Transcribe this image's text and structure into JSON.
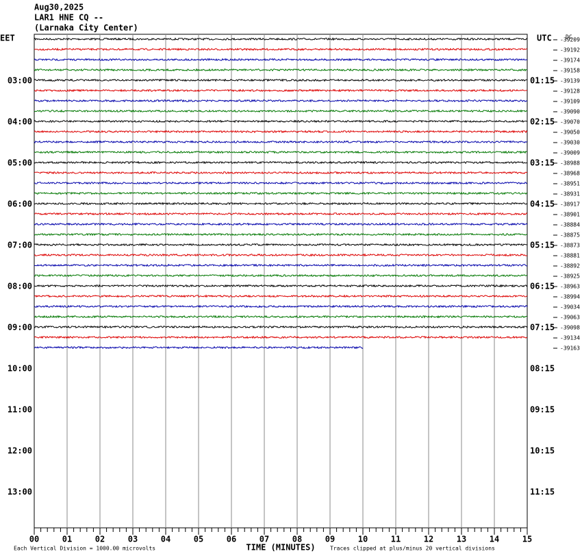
{
  "header": {
    "date": "Aug30,2025",
    "station": "LAR1 HNE CQ --",
    "location": "(Larnaka City Center)"
  },
  "left_axis": {
    "title": "EET",
    "labels": [
      "03:00",
      "04:00",
      "05:00",
      "06:00",
      "07:00",
      "08:00",
      "09:00",
      "10:00",
      "11:00",
      "12:00",
      "13:00"
    ]
  },
  "right_axis": {
    "title": "UTC",
    "dc": "DC",
    "labels": [
      "01:15",
      "02:15",
      "03:15",
      "04:15",
      "05:15",
      "06:15",
      "07:15",
      "08:15",
      "09:15",
      "10:15",
      "11:15"
    ]
  },
  "trace_offsets": [
    "-39209",
    "-39192",
    "-39174",
    "-39158",
    "-39139",
    "-39128",
    "-39109",
    "-39090",
    "-39070",
    "-39050",
    "-39030",
    "-39009",
    "-38988",
    "-38968",
    "-38951",
    "-38931",
    "-38917",
    "-38901",
    "-38884",
    "-38875",
    "-38873",
    "-38881",
    "-38892",
    "-38925",
    "-38963",
    "-38994",
    "-39034",
    "-39063",
    "-39098",
    "-39134",
    "-39163"
  ],
  "x_axis": {
    "labels": [
      "00",
      "01",
      "02",
      "03",
      "04",
      "05",
      "06",
      "07",
      "08",
      "09",
      "10",
      "11",
      "12",
      "13",
      "14",
      "15"
    ],
    "title": "TIME (MINUTES)"
  },
  "footer": {
    "scale": "Each Vertical Division = 1000.00 microvolts",
    "clip": "Traces clipped at plus/minus 20 vertical divisions"
  }
}
